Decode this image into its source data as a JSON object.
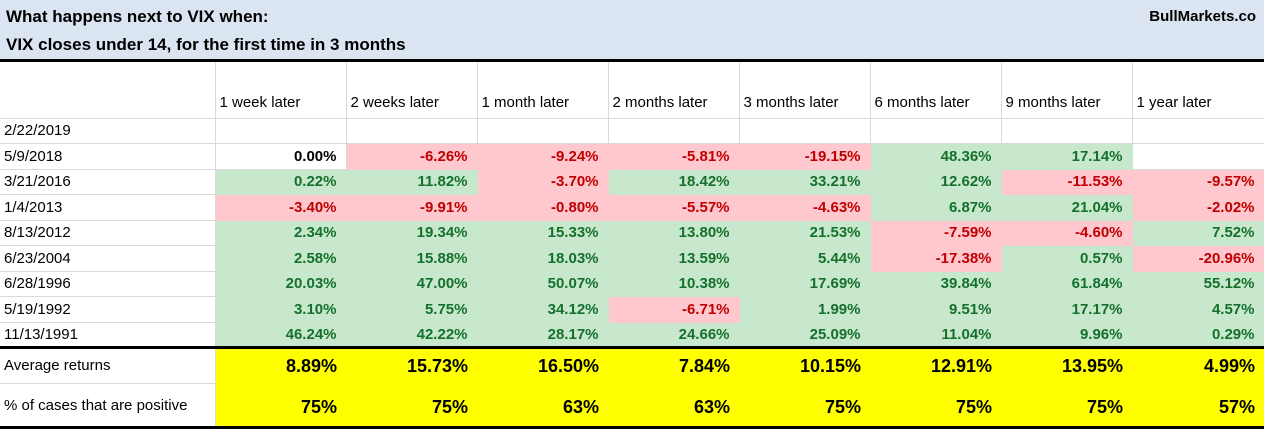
{
  "title": {
    "line1": "What happens next to VIX when:",
    "line2": "VIX closes under 14, for the first time in 3 months",
    "brand": "BullMarkets.co"
  },
  "table": {
    "column_headers": [
      "1 week later",
      "2 weeks later",
      "1 month later",
      "2 months later",
      "3 months later",
      "6 months later",
      "9 months later",
      "1 year later"
    ],
    "rows": [
      {
        "label": "2/22/2019",
        "values": [
          "",
          "",
          "",
          "",
          "",
          "",
          "",
          ""
        ]
      },
      {
        "label": "5/9/2018",
        "values": [
          "0.00%",
          "-6.26%",
          "-9.24%",
          "-5.81%",
          "-19.15%",
          "48.36%",
          "17.14%",
          ""
        ]
      },
      {
        "label": "3/21/2016",
        "values": [
          "0.22%",
          "11.82%",
          "-3.70%",
          "18.42%",
          "33.21%",
          "12.62%",
          "-11.53%",
          "-9.57%"
        ]
      },
      {
        "label": "1/4/2013",
        "values": [
          "-3.40%",
          "-9.91%",
          "-0.80%",
          "-5.57%",
          "-4.63%",
          "6.87%",
          "21.04%",
          "-2.02%"
        ]
      },
      {
        "label": "8/13/2012",
        "values": [
          "2.34%",
          "19.34%",
          "15.33%",
          "13.80%",
          "21.53%",
          "-7.59%",
          "-4.60%",
          "7.52%"
        ]
      },
      {
        "label": "6/23/2004",
        "values": [
          "2.58%",
          "15.88%",
          "18.03%",
          "13.59%",
          "5.44%",
          "-17.38%",
          "0.57%",
          "-20.96%"
        ]
      },
      {
        "label": "6/28/1996",
        "values": [
          "20.03%",
          "47.00%",
          "50.07%",
          "10.38%",
          "17.69%",
          "39.84%",
          "61.84%",
          "55.12%"
        ]
      },
      {
        "label": "5/19/1992",
        "values": [
          "3.10%",
          "5.75%",
          "34.12%",
          "-6.71%",
          "1.99%",
          "9.51%",
          "17.17%",
          "4.57%"
        ]
      },
      {
        "label": "11/13/1991",
        "values": [
          "46.24%",
          "42.22%",
          "28.17%",
          "24.66%",
          "25.09%",
          "11.04%",
          "9.96%",
          "0.29%"
        ]
      }
    ],
    "summary": [
      {
        "label": "Average returns",
        "values": [
          "8.89%",
          "15.73%",
          "16.50%",
          "7.84%",
          "10.15%",
          "12.91%",
          "13.95%",
          "4.99%"
        ]
      },
      {
        "label": "% of cases that are positive",
        "values": [
          "75%",
          "75%",
          "63%",
          "63%",
          "75%",
          "75%",
          "75%",
          "57%"
        ]
      }
    ]
  },
  "colors": {
    "title_bg": "#dbe5f1",
    "grid": "#d9d9d9",
    "pos_bg": "#c8e8cd",
    "pos_text": "#15702c",
    "neg_bg": "#ffc7ce",
    "neg_text": "#c00000",
    "summary_bg": "#ffff00"
  }
}
